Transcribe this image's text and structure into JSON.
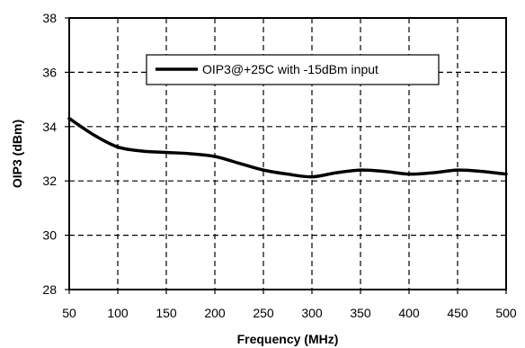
{
  "chart_data": {
    "type": "line",
    "xlabel": "Frequency (MHz)",
    "ylabel": "OIP3 (dBm)",
    "xlim": [
      50,
      500
    ],
    "ylim": [
      28,
      38
    ],
    "xticks": [
      50,
      100,
      150,
      200,
      250,
      300,
      350,
      400,
      450,
      500
    ],
    "yticks": [
      28,
      30,
      32,
      34,
      36,
      38
    ],
    "grid": true,
    "legend_position": "top-right",
    "series": [
      {
        "name": "OIP3@+25C with -15dBm input",
        "color": "#000000",
        "x": [
          50,
          75,
          100,
          125,
          150,
          175,
          200,
          225,
          250,
          275,
          300,
          325,
          350,
          375,
          400,
          425,
          450,
          475,
          500
        ],
        "y": [
          34.3,
          33.7,
          33.25,
          33.1,
          33.05,
          33.0,
          32.9,
          32.65,
          32.4,
          32.25,
          32.15,
          32.3,
          32.4,
          32.35,
          32.25,
          32.3,
          32.4,
          32.35,
          32.25
        ]
      }
    ]
  }
}
